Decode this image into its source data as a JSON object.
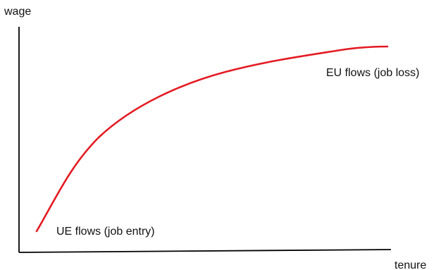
{
  "labels": {
    "y_axis": "wage",
    "x_axis": "tenure",
    "upper_annotation": "EU flows (job loss)",
    "lower_annotation": "UE flows (job entry)"
  },
  "colors": {
    "curve": "#e31b23",
    "axis": "#000000",
    "text": "#111111"
  }
}
